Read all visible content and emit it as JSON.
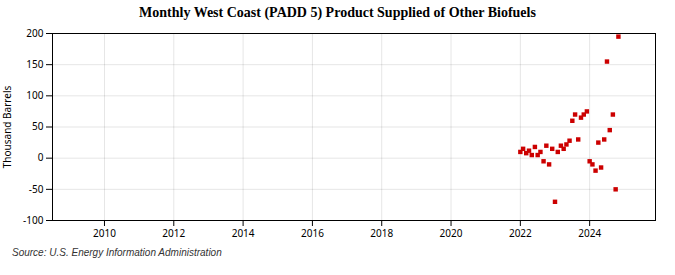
{
  "chart_data": {
    "type": "scatter",
    "title": "Monthly West Coast (PADD 5) Product Supplied of Other Biofuels",
    "ylabel": "Thousand Barrels",
    "annotations": [
      "Source: U.S. Energy Information Administration"
    ],
    "color": "#cc0000",
    "marker": "square",
    "grid": true,
    "xlim": [
      2008.5,
      2025.9
    ],
    "ylim": [
      -100,
      200
    ],
    "xticks": [
      2010,
      2012,
      2014,
      2016,
      2018,
      2020,
      2022,
      2024
    ],
    "yticks": [
      -100,
      -50,
      0,
      50,
      100,
      150,
      200
    ],
    "x": [
      2022.0,
      2022.08,
      2022.17,
      2022.25,
      2022.33,
      2022.42,
      2022.5,
      2022.58,
      2022.67,
      2022.75,
      2022.83,
      2022.92,
      2023.0,
      2023.08,
      2023.17,
      2023.25,
      2023.33,
      2023.42,
      2023.5,
      2023.58,
      2023.67,
      2023.75,
      2023.83,
      2023.92,
      2024.0,
      2024.08,
      2024.17,
      2024.25,
      2024.33,
      2024.42,
      2024.5,
      2024.58,
      2024.67,
      2024.75,
      2024.83
    ],
    "values": [
      10,
      15,
      8,
      12,
      5,
      18,
      5,
      10,
      -5,
      20,
      -10,
      15,
      -70,
      10,
      20,
      15,
      22,
      28,
      60,
      70,
      30,
      65,
      70,
      75,
      -5,
      -10,
      -20,
      25,
      -15,
      30,
      155,
      45,
      70,
      -50,
      195
    ]
  }
}
